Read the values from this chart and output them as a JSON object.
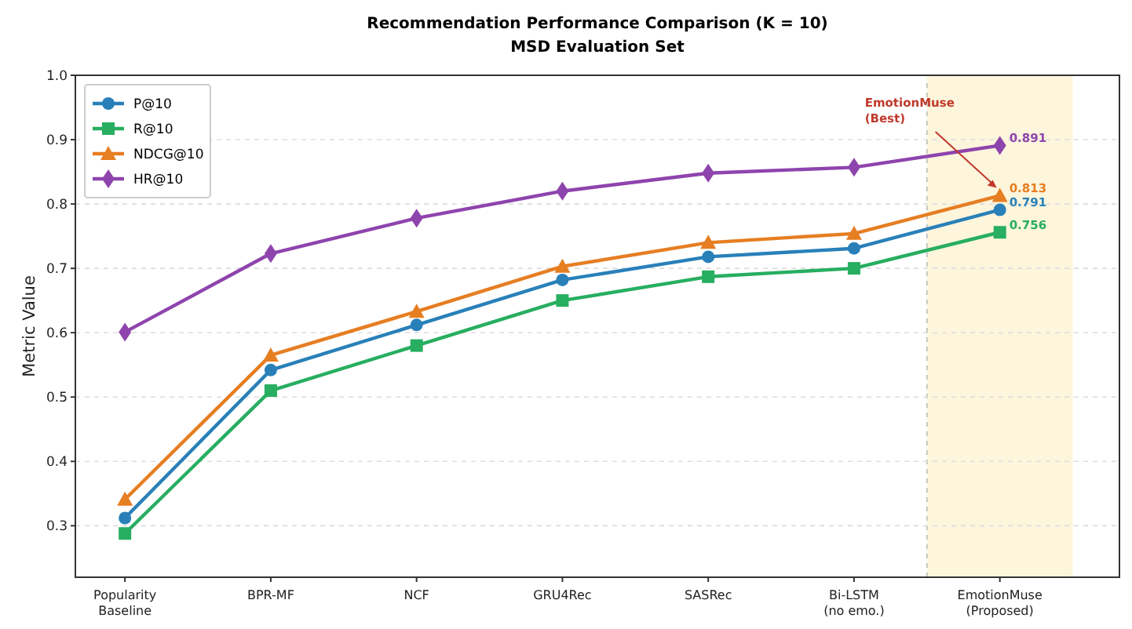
{
  "chart_data": {
    "type": "line",
    "title": "Recommendation Performance Comparison (K = 10)",
    "subtitle": "MSD Evaluation Set",
    "ylabel": "Metric Value",
    "categories": [
      "Popularity\nBaseline",
      "BPR-MF",
      "NCF",
      "GRU4Rec",
      "SASRec",
      "Bi-LSTM\n(no emo.)",
      "EmotionMuse\n(Proposed)"
    ],
    "series": [
      {
        "name": "P@10",
        "color": "#2980b9",
        "marker": "circle",
        "values": [
          0.312,
          0.542,
          0.612,
          0.682,
          0.718,
          0.731,
          0.791
        ],
        "value_labels": [
          null,
          null,
          null,
          null,
          null,
          null,
          "0.791"
        ]
      },
      {
        "name": "R@10",
        "color": "#27ae60",
        "marker": "square",
        "values": [
          0.288,
          0.51,
          0.58,
          0.65,
          0.687,
          0.7,
          0.756
        ],
        "value_labels": [
          null,
          null,
          null,
          null,
          null,
          null,
          "0.756"
        ]
      },
      {
        "name": "NDCG@10",
        "color": "#e67e22",
        "marker": "triangle",
        "values": [
          0.341,
          0.565,
          0.633,
          0.703,
          0.74,
          0.754,
          0.813
        ],
        "value_labels": [
          null,
          null,
          null,
          null,
          null,
          null,
          "0.813"
        ]
      },
      {
        "name": "HR@10",
        "color": "#8e44ad",
        "marker": "diamond",
        "values": [
          0.601,
          0.723,
          0.778,
          0.82,
          0.848,
          0.857,
          0.891
        ],
        "value_labels": [
          null,
          null,
          null,
          null,
          null,
          null,
          "0.891"
        ]
      }
    ],
    "ylim": [
      0.22,
      1.0
    ],
    "yticks": [
      {
        "value": 0.3,
        "label": "0.3"
      },
      {
        "value": 0.4,
        "label": "0.4"
      },
      {
        "value": 0.5,
        "label": "0.5"
      },
      {
        "value": 0.6,
        "label": "0.6"
      },
      {
        "value": 0.7,
        "label": "0.7"
      },
      {
        "value": 0.8,
        "label": "0.8"
      },
      {
        "value": 0.9,
        "label": "0.9"
      },
      {
        "value": 1.0,
        "label": "1.0"
      }
    ],
    "bands": [
      {
        "axis": "x",
        "from": "EmotionMuse\n(Proposed)",
        "to": "EmotionMuse\n(Proposed)",
        "color": "#fdf5dc"
      }
    ],
    "annotations": [
      {
        "text": "EmotionMuse\n(Best)",
        "x": "EmotionMuse\n(Proposed)",
        "y": 0.813
      }
    ],
    "grid": "y",
    "legend": "top left",
    "line_style": "solid"
  }
}
